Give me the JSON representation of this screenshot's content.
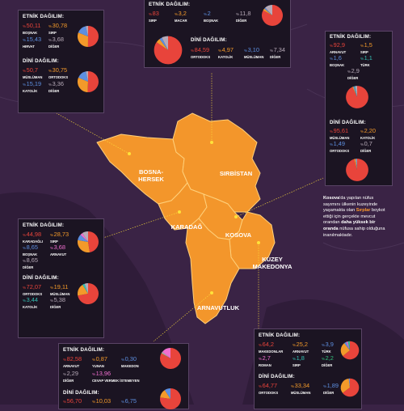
{
  "colors": {
    "background": "#3a2345",
    "map_fill": "#f3962b",
    "box": "#1b1422",
    "red": "#e8443b",
    "orange": "#f39a2a",
    "blue": "#5d8fe0",
    "teal": "#33c0b3",
    "pink": "#f06fd0",
    "gray": "#b7aab8",
    "green": "#33c07b",
    "connector": "#ffe23a"
  },
  "labels": {
    "etnik": "ETNİK DAĞILIM:",
    "dini": "DİNİ DAĞILIM:"
  },
  "countries": {
    "bosna": "BOSNA-\nHERSEK",
    "sirbistan": "SIRBİSTAN",
    "karadag": "KARADAĞ",
    "kosova": "KOSOVA",
    "makedonya": "KUZEY\nMAKEDONYA",
    "arnavutluk": "ARNAVUTLUK"
  },
  "kosova_note": {
    "bold1": "Kosova",
    "t1": "'da yapılan nüfus sayımını ülkenin kuzeyinde yaşamakta olan ",
    "hl1": "Sırplar",
    "t2": " boykot ettiği için gerçekte mevcut orandan ",
    "bold2": "daha yüksek bir oranda",
    "t3": " nüfusa sahip olduğuna inanılmaktadır."
  },
  "bosna": {
    "etnik": [
      {
        "value": "50,11",
        "label": "BOŞNAK"
      },
      {
        "value": "30,78",
        "label": "SIRP"
      },
      {
        "value": "15,43",
        "label": "HIRVAT"
      },
      {
        "value": "3,68",
        "label": "DİĞER"
      }
    ],
    "dini": [
      {
        "value": "50,7",
        "label": "MÜSLÜMAN"
      },
      {
        "value": "30,75",
        "label": "ORTODOKS"
      },
      {
        "value": "15,19",
        "label": "KATOLİK"
      },
      {
        "value": "3,36",
        "label": "DİĞER"
      }
    ]
  },
  "sirbistan": {
    "etnik": [
      {
        "value": "83",
        "label": "SIRP"
      },
      {
        "value": "3,2",
        "label": "MACAR"
      },
      {
        "value": "2",
        "label": "BOŞNAK"
      },
      {
        "value": "11,8",
        "label": "DİĞER"
      }
    ],
    "dini": [
      {
        "value": "84,59",
        "label": "ORTODOKS"
      },
      {
        "value": "4,97",
        "label": "KATOLİK"
      },
      {
        "value": "3,10",
        "label": "MÜSLÜMAN"
      },
      {
        "value": "7,34",
        "label": "DİĞER"
      }
    ]
  },
  "kosova": {
    "etnik": [
      {
        "value": "92,9",
        "label": "ARNAVUT"
      },
      {
        "value": "1,5",
        "label": "SIRP"
      },
      {
        "value": "1,6",
        "label": "BOŞNAK"
      },
      {
        "value": "1,1",
        "label": "TÜRK"
      },
      {
        "value": "2,9",
        "label": "DİĞER"
      }
    ],
    "dini": [
      {
        "value": "95,61",
        "label": "MÜSLÜMAN"
      },
      {
        "value": "2,20",
        "label": "KATOLİK"
      },
      {
        "value": "1,49",
        "label": "ORTODOKS"
      },
      {
        "value": "0,7",
        "label": "DİĞER"
      }
    ]
  },
  "karadag": {
    "etnik": [
      {
        "value": "44,98",
        "label": "KARADAĞLI"
      },
      {
        "value": "28,73",
        "label": "SIRP"
      },
      {
        "value": "8,65",
        "label": "BOŞNAK"
      },
      {
        "value": "3,68",
        "label": "ARNAVUT"
      },
      {
        "value": "8,65",
        "label": "DİĞER"
      }
    ],
    "dini": [
      {
        "value": "72,07",
        "label": "ORTODOKS"
      },
      {
        "value": "19,11",
        "label": "MÜSLÜMAN"
      },
      {
        "value": "3,44",
        "label": "KATOLİK"
      },
      {
        "value": "5,38",
        "label": "DİĞER"
      }
    ]
  },
  "makedonya": {
    "etnik": [
      {
        "value": "64,2",
        "label": "MAKEDONLAR"
      },
      {
        "value": "25,2",
        "label": "ARNAVUT"
      },
      {
        "value": "3,9",
        "label": "TÜRK"
      },
      {
        "value": "2,7",
        "label": "ROMAN"
      },
      {
        "value": "1,8",
        "label": "SIRP"
      },
      {
        "value": "2,2",
        "label": "DİĞER"
      }
    ],
    "dini": [
      {
        "value": "64,77",
        "label": "ORTODOKS"
      },
      {
        "value": "33,34",
        "label": "MÜSLÜMAN"
      },
      {
        "value": "1,89",
        "label": "DİĞER"
      }
    ]
  },
  "arnavutluk": {
    "etnik": [
      {
        "value": "82,58",
        "label": "ARNAVUT"
      },
      {
        "value": "0,87",
        "label": "YUNAN"
      },
      {
        "value": "0,30",
        "label": "MAKEDON"
      },
      {
        "value": "2,29",
        "label": "DİĞER"
      },
      {
        "value": "13,96",
        "label": "CEVAP VERMEK İSTEMEYEN"
      }
    ],
    "dini": [
      {
        "value": "56,70"
      },
      {
        "value": "10,03"
      },
      {
        "value": "6,75"
      }
    ]
  }
}
